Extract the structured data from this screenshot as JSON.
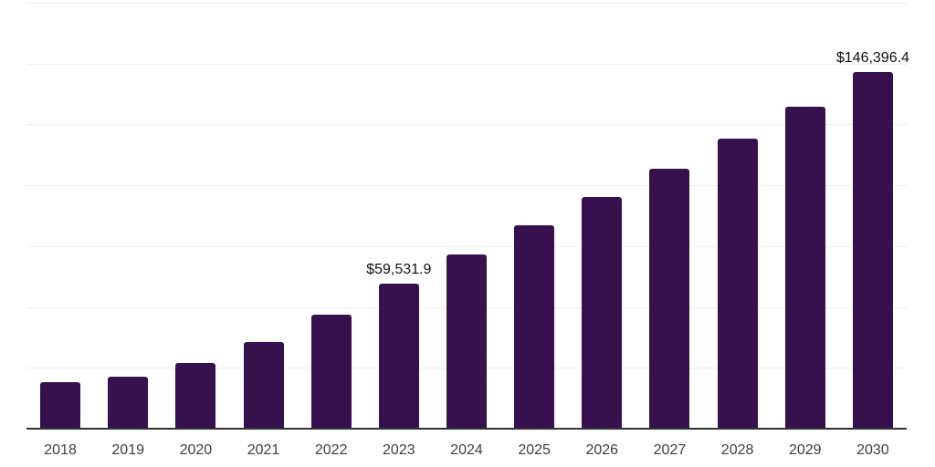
{
  "chart_data": {
    "type": "bar",
    "title": "",
    "categories": [
      "2018",
      "2019",
      "2020",
      "2021",
      "2022",
      "2023",
      "2024",
      "2025",
      "2026",
      "2027",
      "2028",
      "2029",
      "2030"
    ],
    "values": [
      19000,
      21200,
      26900,
      35600,
      46800,
      59531.9,
      71500,
      83500,
      95100,
      106800,
      119200,
      132300,
      146396.4
    ],
    "data_labels": {
      "2023": "$59,531.9",
      "2030": "$146,396.4"
    },
    "xlabel": "",
    "ylabel": "",
    "ylim": [
      0,
      175000
    ],
    "gridline_step": 25000,
    "grid": "horizontal",
    "legend": "none",
    "y_axis_tick_labels": "hidden",
    "colors": {
      "bar": "#36114D",
      "axis_line": "#333333",
      "gridline": "#f0f0f1",
      "tick_label": "#3f3f3f",
      "data_label": "#111111",
      "background": "#ffffff"
    }
  }
}
